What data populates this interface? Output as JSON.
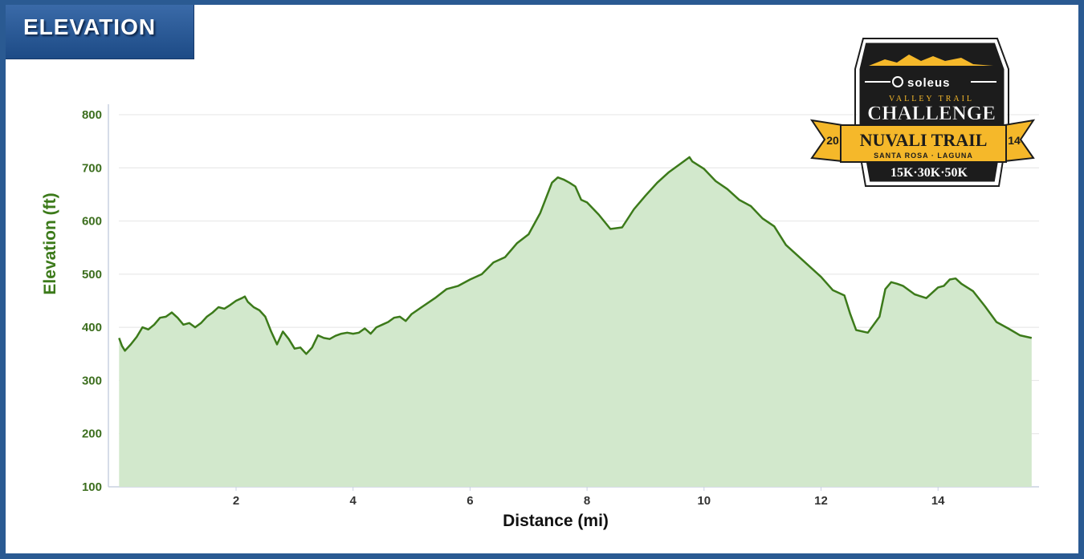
{
  "header": {
    "title": "ELEVATION"
  },
  "logo": {
    "brand": "soleus",
    "line1": "VALLEY TRAIL",
    "line2": "CHALLENGE",
    "line3": "NUVALI TRAIL",
    "line4": "SANTA ROSA · LAGUNA",
    "year_left": "20",
    "year_right": "14",
    "distances": "15K·30K·50K",
    "colors": {
      "dark": "#1c1c1c",
      "gold": "#f5b82a"
    }
  },
  "chart_data": {
    "type": "area",
    "title": "",
    "xlabel": "Distance (mi)",
    "ylabel": "Elevation (ft)",
    "xlim": [
      0,
      15.6
    ],
    "ylim": [
      100,
      800
    ],
    "x_ticks": [
      2,
      4,
      6,
      8,
      10,
      12,
      14
    ],
    "y_ticks": [
      100,
      200,
      300,
      400,
      500,
      600,
      700,
      800
    ],
    "grid": true,
    "colors": {
      "line": "#3c7a1a",
      "fill": "#d2e8cc",
      "grid": "#e4e4e4",
      "axis": "#c8d0e0"
    },
    "series": [
      {
        "x": [
          0.0,
          0.05,
          0.1,
          0.2,
          0.3,
          0.4,
          0.5,
          0.6,
          0.7,
          0.8,
          0.9,
          1.0,
          1.1,
          1.2,
          1.3,
          1.4,
          1.5,
          1.6,
          1.7,
          1.8,
          1.9,
          2.0,
          2.1,
          2.15,
          2.2,
          2.3,
          2.4,
          2.5,
          2.6,
          2.7,
          2.8,
          2.9,
          3.0,
          3.1,
          3.2,
          3.3,
          3.4,
          3.5,
          3.6,
          3.7,
          3.8,
          3.9,
          4.0,
          4.1,
          4.2,
          4.3,
          4.4,
          4.5,
          4.6,
          4.7,
          4.8,
          4.9,
          5.0,
          5.2,
          5.4,
          5.6,
          5.8,
          6.0,
          6.2,
          6.4,
          6.6,
          6.8,
          7.0,
          7.2,
          7.4,
          7.5,
          7.6,
          7.7,
          7.8,
          7.9,
          8.0,
          8.2,
          8.4,
          8.6,
          8.8,
          9.0,
          9.2,
          9.4,
          9.6,
          9.75,
          9.8,
          10.0,
          10.2,
          10.4,
          10.6,
          10.8,
          11.0,
          11.2,
          11.4,
          11.6,
          11.8,
          12.0,
          12.2,
          12.4,
          12.5,
          12.6,
          12.8,
          13.0,
          13.1,
          13.2,
          13.3,
          13.4,
          13.6,
          13.8,
          14.0,
          14.1,
          14.2,
          14.3,
          14.4,
          14.6,
          14.8,
          15.0,
          15.2,
          15.4,
          15.6
        ],
        "y": [
          380,
          365,
          356,
          368,
          382,
          400,
          396,
          405,
          418,
          420,
          428,
          418,
          405,
          408,
          400,
          408,
          420,
          428,
          438,
          435,
          442,
          450,
          455,
          458,
          448,
          438,
          432,
          420,
          392,
          368,
          392,
          378,
          360,
          362,
          350,
          362,
          385,
          380,
          378,
          384,
          388,
          390,
          388,
          390,
          398,
          388,
          400,
          405,
          410,
          418,
          420,
          412,
          425,
          440,
          455,
          472,
          478,
          490,
          500,
          522,
          532,
          558,
          575,
          615,
          672,
          682,
          678,
          672,
          665,
          640,
          635,
          612,
          585,
          588,
          622,
          648,
          672,
          692,
          708,
          720,
          712,
          698,
          675,
          660,
          640,
          628,
          605,
          590,
          555,
          535,
          515,
          495,
          470,
          460,
          425,
          395,
          390,
          420,
          472,
          485,
          482,
          478,
          462,
          455,
          475,
          478,
          490,
          492,
          482,
          468,
          440,
          410,
          398,
          385,
          380
        ]
      }
    ]
  }
}
